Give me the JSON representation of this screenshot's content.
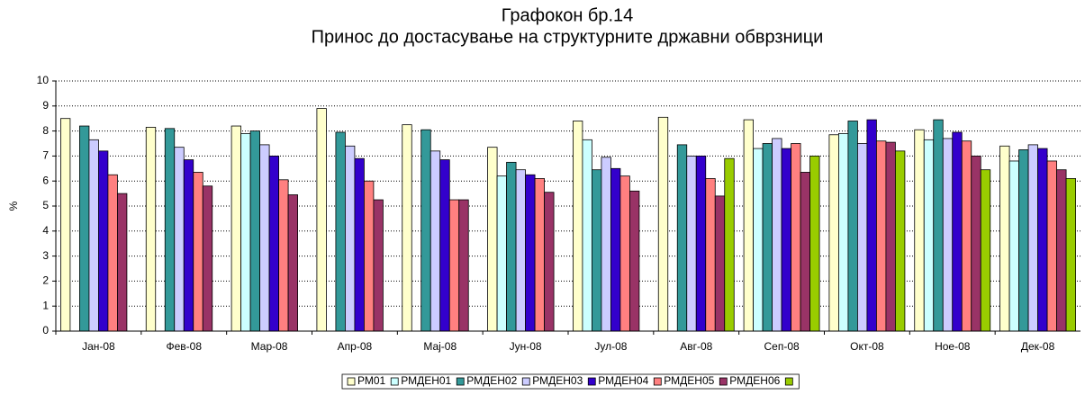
{
  "chart_data": {
    "type": "bar",
    "title": [
      "Графокон бр.14",
      "Принос до достасување на структурните државни обврзници"
    ],
    "y_label": "%",
    "categories": [
      "Јан-08",
      "Фев-08",
      "Мар-08",
      "Апр-08",
      "Мај-08",
      "Јун-08",
      "Јул-08",
      "Авг-08",
      "Сеп-08",
      "Окт-08",
      "Ное-08",
      "Дек-08"
    ],
    "series": [
      {
        "name": "РМ01",
        "color": "#ffffcc",
        "values": [
          8.5,
          8.15,
          8.2,
          8.9,
          8.25,
          7.35,
          8.4,
          8.55,
          8.45,
          7.85,
          8.05,
          7.4
        ]
      },
      {
        "name": "РМДЕН01",
        "color": "#ccffff",
        "values": [
          null,
          null,
          7.9,
          null,
          null,
          6.2,
          7.65,
          null,
          7.3,
          7.9,
          7.65,
          6.8
        ]
      },
      {
        "name": "РМДЕН02",
        "color": "#339999",
        "values": [
          8.2,
          8.1,
          8.0,
          7.95,
          8.05,
          6.75,
          6.45,
          7.45,
          7.5,
          8.4,
          8.45,
          7.25
        ]
      },
      {
        "name": "РМДЕН03",
        "color": "#ccccff",
        "values": [
          7.65,
          7.35,
          7.45,
          7.4,
          7.2,
          6.45,
          6.95,
          7.0,
          7.7,
          7.5,
          7.7,
          7.45
        ]
      },
      {
        "name": "РМДЕН04",
        "color": "#3300cc",
        "values": [
          7.2,
          6.85,
          7.0,
          6.9,
          6.85,
          6.25,
          6.5,
          7.0,
          7.3,
          8.45,
          7.95,
          7.3
        ]
      },
      {
        "name": "РМДЕН05",
        "color": "#ff8080",
        "values": [
          6.25,
          6.35,
          6.05,
          6.0,
          5.25,
          6.1,
          6.2,
          6.1,
          7.5,
          7.6,
          7.6,
          6.8
        ]
      },
      {
        "name": "РМДЕН06",
        "color": "#993366",
        "values": [
          5.5,
          5.8,
          5.45,
          5.25,
          5.25,
          5.55,
          5.6,
          5.4,
          6.35,
          7.55,
          7.0,
          6.45
        ]
      },
      {
        "color": "#99cc00",
        "values": [
          null,
          null,
          null,
          null,
          null,
          null,
          null,
          6.9,
          7.0,
          7.2,
          6.45,
          6.1
        ]
      }
    ],
    "ylim": [
      0,
      10
    ],
    "yticks": [
      0,
      1,
      2,
      3,
      4,
      5,
      6,
      7,
      8,
      9,
      10
    ],
    "grid": true,
    "legend": "bottom"
  }
}
